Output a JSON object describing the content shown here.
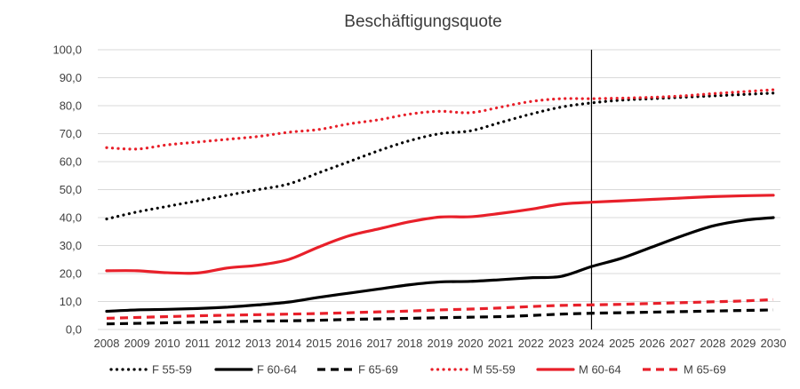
{
  "chart_data": {
    "type": "line",
    "title": "Beschäftigungsquote",
    "xlabel": "",
    "ylabel": "",
    "ylim": [
      0,
      100
    ],
    "yticks": [
      "0,0",
      "10,0",
      "20,0",
      "30,0",
      "40,0",
      "50,0",
      "60,0",
      "70,0",
      "80,0",
      "90,0",
      "100,0"
    ],
    "x": [
      "2008",
      "2009",
      "2010",
      "2011",
      "2012",
      "2013",
      "2014",
      "2015",
      "2016",
      "2017",
      "2018",
      "2019",
      "2020",
      "2021",
      "2022",
      "2023",
      "2024",
      "2025",
      "2026",
      "2027",
      "2028",
      "2029",
      "2030"
    ],
    "grid": "horizontal",
    "legend_position": "bottom",
    "marker_line": {
      "x": "2024"
    },
    "series": [
      {
        "name": "F 55-59",
        "color": "#000000",
        "dash": "dotted",
        "values": [
          39.5,
          42,
          44,
          46,
          48,
          50,
          52,
          56,
          60,
          64,
          67.5,
          70,
          71,
          74,
          77,
          79.5,
          81,
          82,
          82.5,
          83,
          83.5,
          84,
          84.5
        ]
      },
      {
        "name": "F 60-64",
        "color": "#000000",
        "dash": "solid",
        "values": [
          6.5,
          7,
          7.2,
          7.5,
          8,
          8.8,
          9.8,
          11.5,
          13,
          14.5,
          16,
          17,
          17.2,
          17.8,
          18.5,
          19,
          22.5,
          25.5,
          29.5,
          33.5,
          37,
          39,
          40
        ]
      },
      {
        "name": "F 65-69",
        "color": "#000000",
        "dash": "dashed",
        "values": [
          2,
          2.2,
          2.4,
          2.6,
          2.8,
          3,
          3.1,
          3.3,
          3.6,
          3.8,
          4,
          4.2,
          4.4,
          4.6,
          5,
          5.5,
          5.8,
          6,
          6.2,
          6.4,
          6.6,
          6.8,
          7
        ]
      },
      {
        "name": "M 55-59",
        "color": "#e8202a",
        "dash": "dotted",
        "values": [
          65,
          64.5,
          66,
          67,
          68,
          69,
          70.5,
          71.5,
          73.5,
          75,
          77,
          78,
          77.5,
          79.5,
          81.5,
          82.5,
          82.5,
          82.7,
          83,
          83.5,
          84.3,
          85,
          85.7
        ]
      },
      {
        "name": "M 60-64",
        "color": "#e8202a",
        "dash": "solid",
        "values": [
          21,
          21,
          20.3,
          20.2,
          22,
          23,
          25,
          29.5,
          33.5,
          36,
          38.5,
          40.2,
          40.3,
          41.5,
          43,
          44.8,
          45.5,
          46,
          46.5,
          47,
          47.5,
          47.8,
          48
        ]
      },
      {
        "name": "M 65-69",
        "color": "#e8202a",
        "dash": "dashed",
        "values": [
          4,
          4.3,
          4.6,
          4.9,
          5.1,
          5.3,
          5.5,
          5.7,
          6,
          6.3,
          6.6,
          7,
          7.3,
          7.7,
          8.2,
          8.6,
          8.8,
          9,
          9.3,
          9.6,
          9.9,
          10.2,
          10.7
        ]
      }
    ]
  }
}
